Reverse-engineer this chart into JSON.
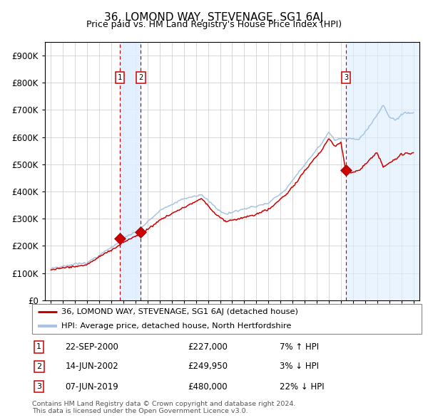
{
  "title": "36, LOMOND WAY, STEVENAGE, SG1 6AJ",
  "subtitle": "Price paid vs. HM Land Registry's House Price Index (HPI)",
  "legend_line1": "36, LOMOND WAY, STEVENAGE, SG1 6AJ (detached house)",
  "legend_line2": "HPI: Average price, detached house, North Hertfordshire",
  "footnote1": "Contains HM Land Registry data © Crown copyright and database right 2024.",
  "footnote2": "This data is licensed under the Open Government Licence v3.0.",
  "transactions": [
    {
      "num": 1,
      "date": "22-SEP-2000",
      "price": 227000,
      "pct": "7%",
      "dir": "↑",
      "year": 2000.72
    },
    {
      "num": 2,
      "date": "14-JUN-2002",
      "price": 249950,
      "pct": "3%",
      "dir": "↓",
      "year": 2002.44
    },
    {
      "num": 3,
      "date": "07-JUN-2019",
      "price": 480000,
      "pct": "22%",
      "dir": "↓",
      "year": 2019.43
    }
  ],
  "hpi_color": "#a8c4e0",
  "sale_color": "#cc0000",
  "dot_color": "#cc0000",
  "vline_color": "#cc0000",
  "shade_color": "#ddeeff",
  "grid_color": "#c8c8c8",
  "bg_color": "#ffffff",
  "label_box_color": "#cc0000",
  "ylim": [
    0,
    950000
  ],
  "yticks": [
    0,
    100000,
    200000,
    300000,
    400000,
    500000,
    600000,
    700000,
    800000,
    900000
  ],
  "xlim_start": 1994.5,
  "xlim_end": 2025.5,
  "xticks": [
    1995,
    1996,
    1997,
    1998,
    1999,
    2000,
    2001,
    2002,
    2003,
    2004,
    2005,
    2006,
    2007,
    2008,
    2009,
    2010,
    2011,
    2012,
    2013,
    2014,
    2015,
    2016,
    2017,
    2018,
    2019,
    2020,
    2021,
    2022,
    2023,
    2024,
    2025
  ]
}
